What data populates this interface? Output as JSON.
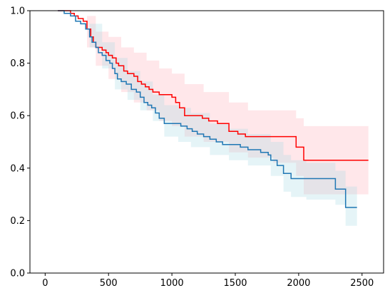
{
  "chart_data": {
    "type": "line",
    "title": "",
    "xlabel": "",
    "ylabel": "",
    "xlim": [
      -120,
      2670
    ],
    "ylim": [
      0,
      1.0
    ],
    "x_ticks": [
      0,
      500,
      1000,
      1500,
      2000,
      2500
    ],
    "x_tick_labels": [
      "0",
      "500",
      "1000",
      "1500",
      "2000",
      "2500"
    ],
    "y_ticks": [
      0.0,
      0.2,
      0.4,
      0.6,
      0.8,
      1.0
    ],
    "y_tick_labels": [
      "0.0",
      "0.2",
      "0.4",
      "0.6",
      "0.8",
      "1.0"
    ],
    "grid": false,
    "legend": "none",
    "step": true,
    "series": [
      {
        "color": "#ff0000",
        "band_color": "#ffb0b8",
        "points": [
          [
            100,
            1.0
          ],
          [
            180,
            1.0
          ],
          [
            200,
            0.99
          ],
          [
            230,
            0.98
          ],
          [
            260,
            0.97
          ],
          [
            300,
            0.96
          ],
          [
            330,
            0.93
          ],
          [
            360,
            0.9
          ],
          [
            380,
            0.88
          ],
          [
            400,
            0.86
          ],
          [
            450,
            0.85
          ],
          [
            480,
            0.84
          ],
          [
            500,
            0.83
          ],
          [
            530,
            0.82
          ],
          [
            560,
            0.8
          ],
          [
            580,
            0.79
          ],
          [
            620,
            0.77
          ],
          [
            650,
            0.76
          ],
          [
            700,
            0.75
          ],
          [
            730,
            0.73
          ],
          [
            760,
            0.72
          ],
          [
            790,
            0.71
          ],
          [
            820,
            0.7
          ],
          [
            850,
            0.69
          ],
          [
            900,
            0.68
          ],
          [
            1000,
            0.67
          ],
          [
            1030,
            0.65
          ],
          [
            1060,
            0.63
          ],
          [
            1100,
            0.6
          ],
          [
            1240,
            0.59
          ],
          [
            1290,
            0.58
          ],
          [
            1360,
            0.57
          ],
          [
            1450,
            0.54
          ],
          [
            1520,
            0.53
          ],
          [
            1580,
            0.52
          ],
          [
            1700,
            0.52
          ],
          [
            1810,
            0.52
          ],
          [
            1980,
            0.48
          ],
          [
            2040,
            0.43
          ],
          [
            2550,
            0.43
          ]
        ],
        "lower": [
          [
            330,
            0.86
          ],
          [
            400,
            0.79
          ],
          [
            500,
            0.74
          ],
          [
            600,
            0.69
          ],
          [
            700,
            0.65
          ],
          [
            800,
            0.62
          ],
          [
            900,
            0.58
          ],
          [
            1000,
            0.56
          ],
          [
            1100,
            0.52
          ],
          [
            1250,
            0.5
          ],
          [
            1450,
            0.46
          ],
          [
            1600,
            0.44
          ],
          [
            1800,
            0.42
          ],
          [
            1980,
            0.37
          ],
          [
            2040,
            0.3
          ],
          [
            2550,
            0.29
          ]
        ],
        "upper": [
          [
            330,
            0.98
          ],
          [
            400,
            0.92
          ],
          [
            500,
            0.9
          ],
          [
            600,
            0.86
          ],
          [
            700,
            0.84
          ],
          [
            800,
            0.81
          ],
          [
            900,
            0.78
          ],
          [
            1000,
            0.76
          ],
          [
            1100,
            0.72
          ],
          [
            1250,
            0.69
          ],
          [
            1450,
            0.65
          ],
          [
            1600,
            0.62
          ],
          [
            1800,
            0.62
          ],
          [
            1980,
            0.59
          ],
          [
            2040,
            0.56
          ],
          [
            2550,
            0.56
          ]
        ]
      },
      {
        "color": "#1f77b4",
        "band_color": "#a8dbe6",
        "points": [
          [
            100,
            1.0
          ],
          [
            150,
            0.99
          ],
          [
            200,
            0.98
          ],
          [
            240,
            0.96
          ],
          [
            280,
            0.95
          ],
          [
            320,
            0.93
          ],
          [
            350,
            0.9
          ],
          [
            370,
            0.88
          ],
          [
            400,
            0.86
          ],
          [
            420,
            0.84
          ],
          [
            450,
            0.83
          ],
          [
            480,
            0.81
          ],
          [
            510,
            0.8
          ],
          [
            530,
            0.78
          ],
          [
            550,
            0.76
          ],
          [
            570,
            0.74
          ],
          [
            600,
            0.73
          ],
          [
            640,
            0.72
          ],
          [
            680,
            0.7
          ],
          [
            720,
            0.69
          ],
          [
            750,
            0.67
          ],
          [
            780,
            0.65
          ],
          [
            810,
            0.64
          ],
          [
            840,
            0.63
          ],
          [
            870,
            0.61
          ],
          [
            900,
            0.59
          ],
          [
            940,
            0.57
          ],
          [
            1000,
            0.57
          ],
          [
            1050,
            0.57
          ],
          [
            1070,
            0.56
          ],
          [
            1120,
            0.55
          ],
          [
            1160,
            0.54
          ],
          [
            1200,
            0.53
          ],
          [
            1250,
            0.52
          ],
          [
            1300,
            0.51
          ],
          [
            1350,
            0.5
          ],
          [
            1400,
            0.49
          ],
          [
            1480,
            0.49
          ],
          [
            1540,
            0.48
          ],
          [
            1600,
            0.47
          ],
          [
            1700,
            0.46
          ],
          [
            1760,
            0.45
          ],
          [
            1780,
            0.43
          ],
          [
            1830,
            0.41
          ],
          [
            1880,
            0.38
          ],
          [
            1940,
            0.36
          ],
          [
            2060,
            0.36
          ],
          [
            2140,
            0.36
          ],
          [
            2290,
            0.32
          ],
          [
            2370,
            0.25
          ],
          [
            2460,
            0.25
          ]
        ],
        "lower": [
          [
            350,
            0.86
          ],
          [
            450,
            0.78
          ],
          [
            550,
            0.7
          ],
          [
            650,
            0.66
          ],
          [
            750,
            0.62
          ],
          [
            850,
            0.58
          ],
          [
            940,
            0.52
          ],
          [
            1050,
            0.5
          ],
          [
            1150,
            0.48
          ],
          [
            1300,
            0.45
          ],
          [
            1450,
            0.43
          ],
          [
            1600,
            0.41
          ],
          [
            1780,
            0.37
          ],
          [
            1880,
            0.31
          ],
          [
            1940,
            0.29
          ],
          [
            2060,
            0.28
          ],
          [
            2290,
            0.26
          ],
          [
            2370,
            0.18
          ],
          [
            2460,
            0.18
          ]
        ],
        "upper": [
          [
            350,
            0.95
          ],
          [
            450,
            0.88
          ],
          [
            550,
            0.82
          ],
          [
            650,
            0.77
          ],
          [
            750,
            0.73
          ],
          [
            850,
            0.68
          ],
          [
            940,
            0.64
          ],
          [
            1050,
            0.63
          ],
          [
            1150,
            0.61
          ],
          [
            1300,
            0.57
          ],
          [
            1450,
            0.55
          ],
          [
            1600,
            0.53
          ],
          [
            1780,
            0.5
          ],
          [
            1880,
            0.45
          ],
          [
            1940,
            0.43
          ],
          [
            2060,
            0.42
          ],
          [
            2290,
            0.39
          ],
          [
            2370,
            0.33
          ],
          [
            2460,
            0.33
          ]
        ]
      }
    ]
  }
}
